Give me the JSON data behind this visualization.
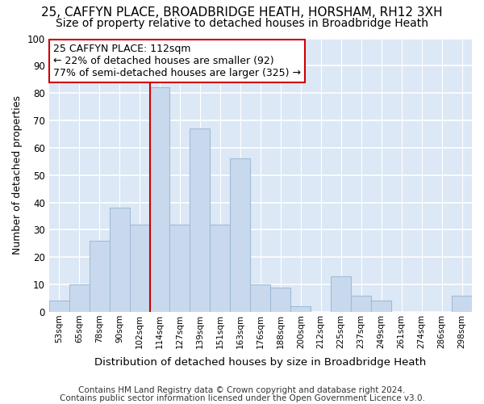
{
  "title1": "25, CAFFYN PLACE, BROADBRIDGE HEATH, HORSHAM, RH12 3XH",
  "title2": "Size of property relative to detached houses in Broadbridge Heath",
  "xlabel": "Distribution of detached houses by size in Broadbridge Heath",
  "ylabel": "Number of detached properties",
  "footer1": "Contains HM Land Registry data © Crown copyright and database right 2024.",
  "footer2": "Contains public sector information licensed under the Open Government Licence v3.0.",
  "bar_labels": [
    "53sqm",
    "65sqm",
    "78sqm",
    "90sqm",
    "102sqm",
    "114sqm",
    "127sqm",
    "139sqm",
    "151sqm",
    "163sqm",
    "176sqm",
    "188sqm",
    "200sqm",
    "212sqm",
    "225sqm",
    "237sqm",
    "249sqm",
    "261sqm",
    "274sqm",
    "286sqm",
    "298sqm"
  ],
  "bar_values": [
    4,
    10,
    26,
    38,
    32,
    82,
    32,
    67,
    32,
    56,
    10,
    9,
    2,
    0,
    13,
    6,
    4,
    0,
    0,
    0,
    6
  ],
  "bar_color": "#c9d9ed",
  "bar_edge_color": "#a0bcd8",
  "vline_bin_idx": 5,
  "vline_color": "#cc0000",
  "annotation_text": "25 CAFFYN PLACE: 112sqm\n← 22% of detached houses are smaller (92)\n77% of semi-detached houses are larger (325) →",
  "annotation_box_facecolor": "white",
  "annotation_box_edgecolor": "#cc0000",
  "fig_bg_color": "#ffffff",
  "axes_bg_color": "#dce8f5",
  "grid_color": "#ffffff",
  "ylim": [
    0,
    100
  ],
  "yticks": [
    0,
    10,
    20,
    30,
    40,
    50,
    60,
    70,
    80,
    90,
    100
  ],
  "title1_fontsize": 11,
  "title2_fontsize": 10,
  "xlabel_fontsize": 9.5,
  "ylabel_fontsize": 9,
  "footer_fontsize": 7.5,
  "annotation_fontsize": 9
}
